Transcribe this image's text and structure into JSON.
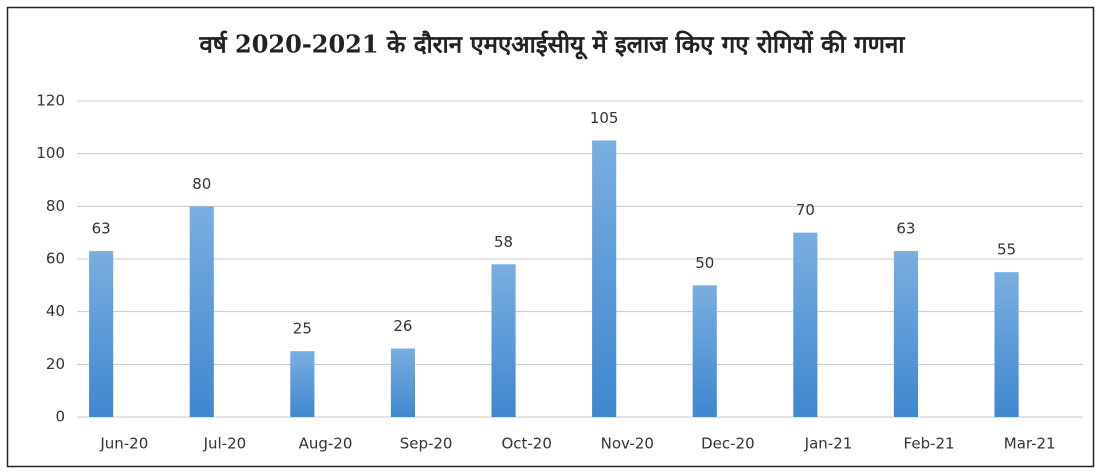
{
  "chart_data": {
    "type": "bar",
    "title": "वर्ष 2020-2021 के दौरान एमएआईसीयू में इलाज किए गए रोगियों की गणना",
    "categories": [
      "Jun-20",
      "Jul-20",
      "Aug-20",
      "Sep-20",
      "Oct-20",
      "Nov-20",
      "Dec-20",
      "Jan-21",
      "Feb-21",
      "Mar-21"
    ],
    "values": [
      63,
      80,
      25,
      26,
      58,
      105,
      50,
      70,
      63,
      55
    ],
    "color": "#5b9bd5",
    "ylim": [
      0,
      120
    ],
    "yticks": [
      0,
      20,
      40,
      60,
      80,
      100,
      120
    ],
    "grid": true
  }
}
